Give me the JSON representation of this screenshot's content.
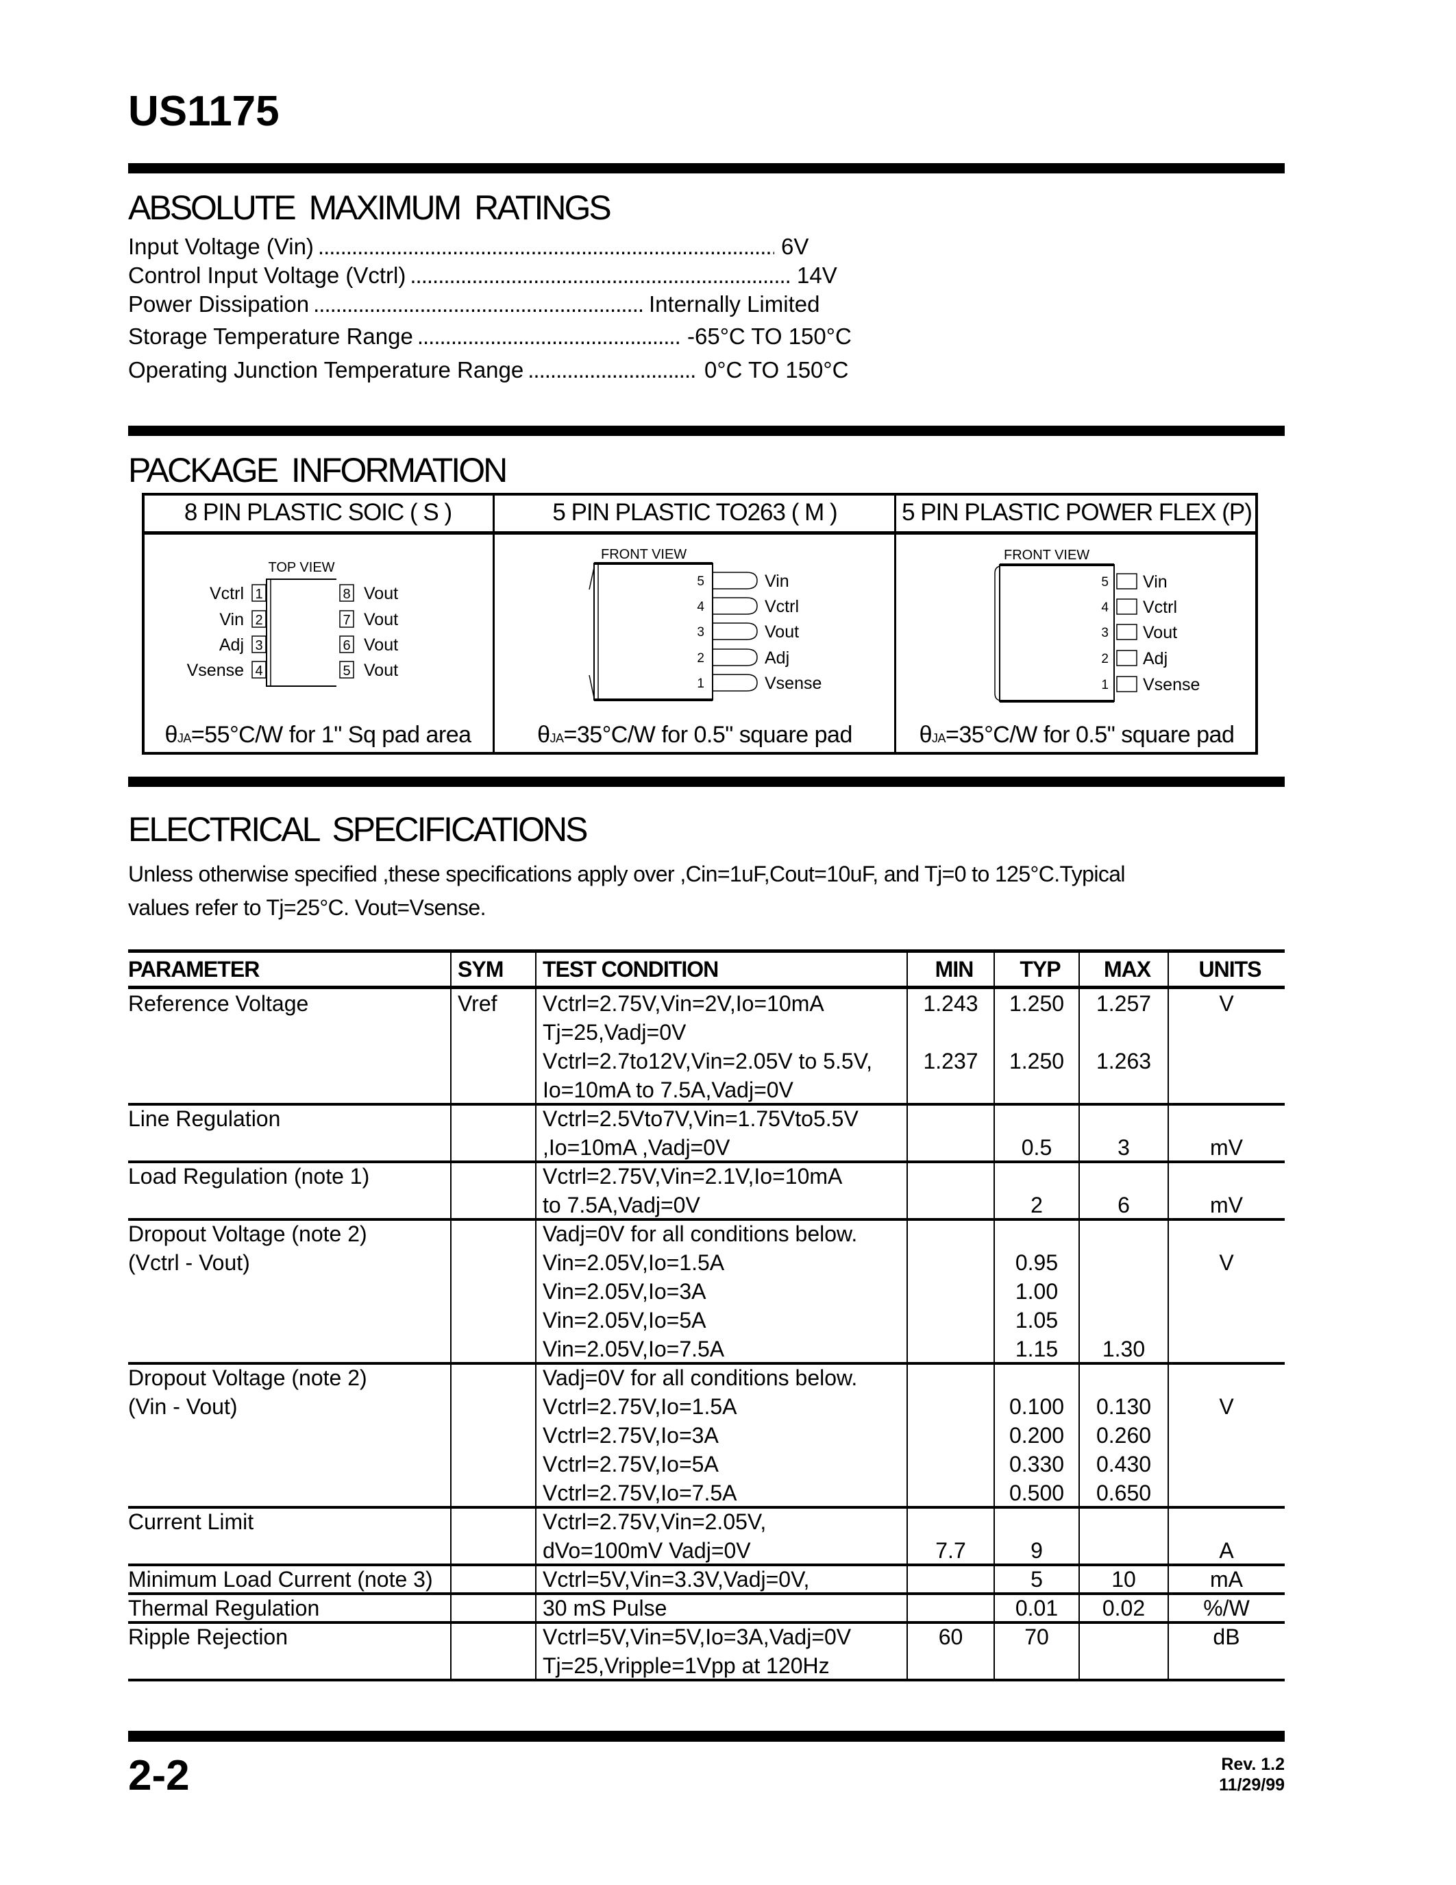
{
  "header": {
    "part_number": "US1175"
  },
  "absolute_maximum_ratings": {
    "heading": "ABSOLUTE MAXIMUM RATINGS",
    "items": [
      {
        "label": "Input Voltage (Vin)",
        "leader": "..........................................................................................",
        "value": "6V"
      },
      {
        "label": "Control Input Voltage (Vctrl)",
        "leader": "..........................................................................................",
        "value": "14V"
      },
      {
        "label": "Power Dissipation",
        "leader": "..........................................................................................",
        "value": "Internally Limited"
      },
      {
        "label": "Storage Temperature Range",
        "leader": "..........................................................................................",
        "value": "-65°C TO 150°C"
      },
      {
        "label": "Operating Junction Temperature Range",
        "leader": "..........................................................................................",
        "value": "0°C TO 150°C"
      }
    ]
  },
  "package_information": {
    "heading": "PACKAGE  INFORMATION",
    "packages": [
      {
        "name": "8 PIN PLASTIC SOIC ( S )",
        "view": "TOP VIEW",
        "left_pins": [
          {
            "num": "1",
            "label": "Vctrl"
          },
          {
            "num": "2",
            "label": "Vin"
          },
          {
            "num": "3",
            "label": "Adj"
          },
          {
            "num": "4",
            "label": "Vsense"
          }
        ],
        "right_pins": [
          {
            "num": "8",
            "label": "Vout"
          },
          {
            "num": "7",
            "label": "Vout"
          },
          {
            "num": "6",
            "label": "Vout"
          },
          {
            "num": "5",
            "label": "Vout"
          }
        ],
        "theta_symbol": "θ",
        "theta_sub": "JA",
        "theta_text": "=55°C/W for 1\" Sq pad area"
      },
      {
        "name": "5 PIN PLASTIC TO263 ( M )",
        "view": "FRONT VIEW",
        "pins": [
          {
            "num": "5",
            "label": "Vin"
          },
          {
            "num": "4",
            "label": "Vctrl"
          },
          {
            "num": "3",
            "label": "Vout"
          },
          {
            "num": "2",
            "label": "Adj"
          },
          {
            "num": "1",
            "label": "Vsense"
          }
        ],
        "theta_symbol": "θ",
        "theta_sub": "JA",
        "theta_text": "=35°C/W for 0.5\" square pad"
      },
      {
        "name": "5 PIN PLASTIC POWER FLEX (P)",
        "view": "FRONT VIEW",
        "pins": [
          {
            "num": "5",
            "label": "Vin"
          },
          {
            "num": "4",
            "label": "Vctrl"
          },
          {
            "num": "3",
            "label": "Vout"
          },
          {
            "num": "2",
            "label": "Adj"
          },
          {
            "num": "1",
            "label": "Vsense"
          }
        ],
        "theta_symbol": "θ",
        "theta_sub": "JA",
        "theta_text": "=35°C/W for 0.5\" square pad"
      }
    ]
  },
  "electrical_specifications": {
    "heading": "ELECTRICAL  SPECIFICATIONS",
    "intro_lines": [
      "Unless otherwise specified ,these specifications apply over ,Cin=1uF,Cout=10uF, and Tj=0 to 125°C.Typical",
      "values refer to Tj=25°C. Vout=Vsense."
    ],
    "columns": [
      "PARAMETER",
      "SYM",
      "TEST CONDITION",
      "MIN",
      "TYP",
      "MAX",
      "UNITS"
    ],
    "rows": [
      [
        [
          "Reference Voltage",
          "Vref",
          "Vctrl=2.75V,Vin=2V,Io=10mA",
          "1.243",
          "1.250",
          "1.257",
          "V"
        ],
        [
          "",
          "",
          "Tj=25,Vadj=0V",
          "",
          "",
          "",
          ""
        ],
        [
          "",
          "",
          "Vctrl=2.7to12V,Vin=2.05V to 5.5V,",
          "1.237",
          "1.250",
          "1.263",
          ""
        ],
        [
          "",
          "",
          "Io=10mA to 7.5A,Vadj=0V",
          "",
          "",
          "",
          ""
        ]
      ],
      [
        [
          "Line Regulation",
          "",
          "Vctrl=2.5Vto7V,Vin=1.75Vto5.5V",
          "",
          "",
          "",
          ""
        ],
        [
          "",
          "",
          ",Io=10mA ,Vadj=0V",
          "",
          "0.5",
          "3",
          "mV"
        ]
      ],
      [
        [
          "Load Regulation (note 1)",
          "",
          "Vctrl=2.75V,Vin=2.1V,Io=10mA",
          "",
          "",
          "",
          ""
        ],
        [
          "",
          "",
          "to 7.5A,Vadj=0V",
          "",
          "2",
          "6",
          "mV"
        ]
      ],
      [
        [
          "Dropout Voltage (note 2)",
          "",
          "Vadj=0V for all conditions below.",
          "",
          "",
          "",
          ""
        ],
        [
          "(Vctrl - Vout)",
          "",
          "Vin=2.05V,Io=1.5A",
          "",
          "0.95",
          "",
          "V"
        ],
        [
          "",
          "",
          "Vin=2.05V,Io=3A",
          "",
          "1.00",
          "",
          ""
        ],
        [
          "",
          "",
          "Vin=2.05V,Io=5A",
          "",
          "1.05",
          "",
          ""
        ],
        [
          "",
          "",
          "Vin=2.05V,Io=7.5A",
          "",
          "1.15",
          "1.30",
          ""
        ]
      ],
      [
        [
          "Dropout Voltage (note 2)",
          "",
          "Vadj=0V for all conditions below.",
          "",
          "",
          "",
          ""
        ],
        [
          "(Vin - Vout)",
          "",
          "Vctrl=2.75V,Io=1.5A",
          "",
          "0.100",
          "0.130",
          "V"
        ],
        [
          "",
          "",
          "Vctrl=2.75V,Io=3A",
          "",
          "0.200",
          "0.260",
          ""
        ],
        [
          "",
          "",
          "Vctrl=2.75V,Io=5A",
          "",
          "0.330",
          "0.430",
          ""
        ],
        [
          "",
          "",
          "Vctrl=2.75V,Io=7.5A",
          "",
          "0.500",
          "0.650",
          ""
        ]
      ],
      [
        [
          "Current Limit",
          "",
          "Vctrl=2.75V,Vin=2.05V,",
          "",
          "",
          "",
          ""
        ],
        [
          "",
          "",
          "dVo=100mV Vadj=0V",
          "7.7",
          "9",
          "",
          "A"
        ]
      ],
      [
        [
          "Minimum Load Current (note 3)",
          "",
          "Vctrl=5V,Vin=3.3V,Vadj=0V,",
          "",
          "5",
          "10",
          "mA"
        ]
      ],
      [
        [
          "Thermal Regulation",
          "",
          "30 mS Pulse",
          "",
          "0.01",
          "0.02",
          "%/W"
        ]
      ],
      [
        [
          "Ripple Rejection",
          "",
          "Vctrl=5V,Vin=5V,Io=3A,Vadj=0V",
          "60",
          "70",
          "",
          "dB"
        ],
        [
          "",
          "",
          "Tj=25,Vripple=1Vpp at 120Hz",
          "",
          "",
          "",
          ""
        ]
      ]
    ]
  },
  "footer": {
    "page_number": "2-2",
    "revision": "Rev. 1.2",
    "date": "11/29/99"
  }
}
